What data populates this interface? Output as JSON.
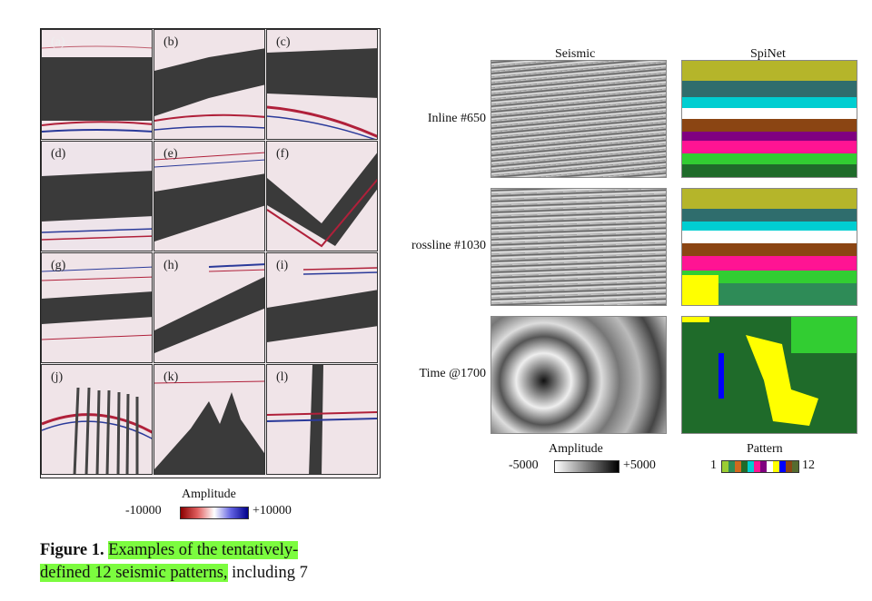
{
  "left_panel": {
    "tiles": [
      "(a)",
      "(b)",
      "(c)",
      "(d)",
      "(e)",
      "(f)",
      "(g)",
      "(h)",
      "(i)",
      "(j)",
      "(k)",
      "(l)"
    ],
    "colorbar": {
      "title": "Amplitude",
      "min_label": "-10000",
      "max_label": "+10000",
      "colors": [
        "#8b0000",
        "#ffffff",
        "#00008b"
      ]
    }
  },
  "right_panel": {
    "col_titles": [
      "Seismic",
      "SpiNet"
    ],
    "rows": [
      "Inline #650",
      "rossline #1030",
      "Time @1700"
    ],
    "amp_bar": {
      "title": "Amplitude",
      "min_label": "-5000",
      "max_label": "+5000"
    },
    "pattern_bar": {
      "title": "Pattern",
      "min_label": "1",
      "max_label": "12",
      "colors": [
        "#9acd32",
        "#2e8b57",
        "#d2691e",
        "#1f6b2a",
        "#00ced1",
        "#ff1493",
        "#800080",
        "#ffffff",
        "#ffff00",
        "#0000ff",
        "#8b4513",
        "#556b2f"
      ]
    }
  },
  "caption": {
    "label": "Figure 1.",
    "highlighted_1": "Examples of the tentatively-",
    "highlighted_2": "defined 12 seismic patterns,",
    "rest": "including 7"
  }
}
